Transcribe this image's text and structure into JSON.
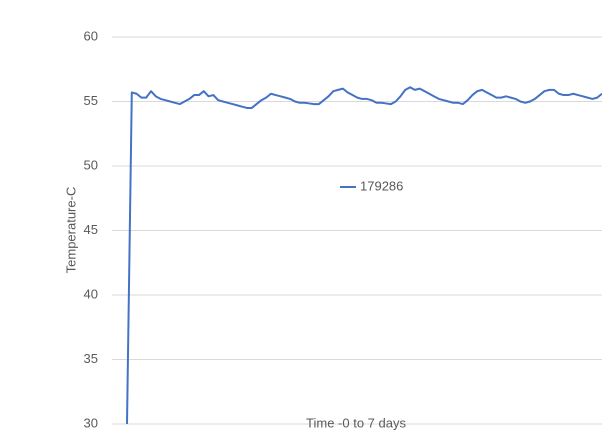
{
  "chart_data": {
    "type": "line",
    "y_axis_title": "Temperature-C",
    "x_axis_title": "Time -0 to 7 days",
    "series": [
      {
        "name": "179286",
        "color": "#4472c4",
        "values": [
          30,
          55.7,
          55.6,
          55.3,
          55.3,
          55.8,
          55.4,
          55.2,
          55.1,
          55.0,
          54.9,
          54.8,
          55.0,
          55.2,
          55.5,
          55.5,
          55.8,
          55.4,
          55.5,
          55.1,
          55.0,
          54.9,
          54.8,
          54.7,
          54.6,
          54.5,
          54.5,
          54.8,
          55.1,
          55.3,
          55.6,
          55.5,
          55.4,
          55.3,
          55.2,
          55.0,
          54.9,
          54.9,
          54.85,
          54.8,
          54.8,
          55.1,
          55.4,
          55.8,
          55.9,
          56.0,
          55.7,
          55.5,
          55.3,
          55.2,
          55.2,
          55.1,
          54.9,
          54.9,
          54.85,
          54.8,
          55.0,
          55.4,
          55.9,
          56.1,
          55.9,
          56.0,
          55.8,
          55.6,
          55.4,
          55.2,
          55.1,
          55.0,
          54.9,
          54.9,
          54.8,
          55.1,
          55.5,
          55.8,
          55.9,
          55.7,
          55.5,
          55.3,
          55.3,
          55.4,
          55.3,
          55.2,
          55.0,
          54.9,
          55.0,
          55.2,
          55.5,
          55.8,
          55.9,
          55.9,
          55.6,
          55.5,
          55.5,
          55.6,
          55.5,
          55.4,
          55.3,
          55.2,
          55.3,
          55.6
        ]
      }
    ],
    "ylim": [
      30,
      60
    ],
    "yticks": [
      30,
      35,
      40,
      45,
      50,
      55,
      60
    ],
    "grid": true,
    "legend": "center"
  }
}
